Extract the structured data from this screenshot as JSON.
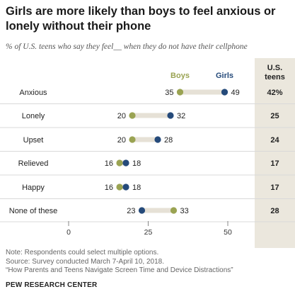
{
  "title": "Girls are more likely than boys to feel anxious or lonely without their phone",
  "subtitle": "% of U.S. teens who say they feel__ when they do not have their cellphone",
  "colors": {
    "boys": "#9aa352",
    "girls": "#254a7a",
    "connector": "#e6e1d6",
    "panel": "#ebe7dd"
  },
  "chart_data": {
    "type": "dot",
    "categories": [
      "Anxious",
      "Lonely",
      "Upset",
      "Relieved",
      "Happy",
      "None of these"
    ],
    "series": [
      {
        "name": "Boys",
        "values": [
          35,
          20,
          20,
          16,
          16,
          33
        ]
      },
      {
        "name": "Girls",
        "values": [
          49,
          32,
          28,
          18,
          18,
          23
        ]
      }
    ],
    "total": {
      "name": "U.S. teens",
      "values": [
        "42%",
        "25",
        "24",
        "17",
        "17",
        "28"
      ]
    },
    "xlim": [
      0,
      50
    ],
    "xticks": [
      0,
      25,
      50
    ],
    "grid": false,
    "legend": "top, above chart"
  },
  "notes": [
    "Note: Respondents could select multiple options.",
    "Source: Survey conducted March 7-April 10, 2018.",
    "“How Parents and Teens Navigate Screen Time and Device Distractions”"
  ],
  "source_org": "PEW RESEARCH CENTER"
}
